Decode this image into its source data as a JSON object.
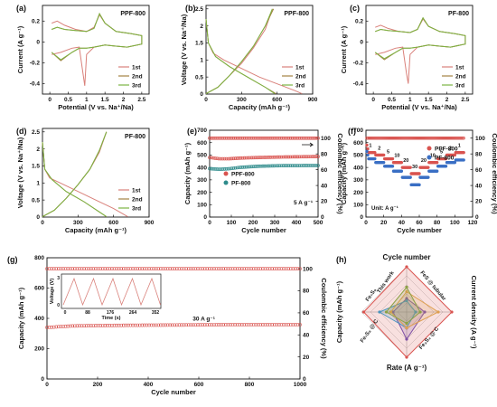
{
  "colors": {
    "c1st": "#d9807a",
    "c2nd": "#a38242",
    "c3rd": "#7cb342",
    "red": "#d9534f",
    "teal": "#2e8b8b",
    "blue": "#3a6fc4"
  },
  "chart_data": [
    {
      "id": "a",
      "panel": "(a)",
      "type": "line",
      "tag": "PPF-800",
      "xlabel": "Potential (V vs. Na⁺/Na)",
      "ylabel": "Current (A g⁻¹)",
      "xlim": [
        -0.2,
        2.7
      ],
      "ylim": [
        -0.5,
        0.35
      ],
      "xticks": [
        0.0,
        0.5,
        1.0,
        1.5,
        2.0,
        2.5
      ],
      "yticks": [
        -0.4,
        -0.2,
        0.0,
        0.2
      ],
      "legend": [
        "1st",
        "2nd",
        "3rd"
      ],
      "series": [
        {
          "name": "1st",
          "x": [
            0.05,
            0.3,
            0.6,
            0.8,
            0.9,
            0.95,
            1.0,
            1.2,
            1.5,
            1.8,
            2.1,
            2.5,
            2.5,
            2.2,
            1.8,
            1.5,
            1.35,
            1.2,
            1.0,
            0.7,
            0.4,
            0.2,
            0.05
          ],
          "y": [
            -0.12,
            -0.1,
            -0.06,
            -0.05,
            -0.3,
            -0.42,
            -0.12,
            -0.05,
            -0.03,
            -0.04,
            -0.05,
            -0.02,
            0.06,
            0.08,
            0.1,
            0.18,
            0.26,
            0.14,
            0.1,
            0.12,
            0.16,
            0.2,
            0.18
          ]
        },
        {
          "name": "2nd",
          "x": [
            0.05,
            0.3,
            0.6,
            0.8,
            1.0,
            1.2,
            1.5,
            1.8,
            2.1,
            2.5,
            2.5,
            2.2,
            1.8,
            1.5,
            1.35,
            1.2,
            1.0,
            0.7,
            0.4,
            0.2,
            0.05
          ],
          "y": [
            -0.1,
            -0.18,
            -0.1,
            -0.06,
            -0.06,
            -0.05,
            -0.03,
            -0.04,
            -0.05,
            -0.02,
            0.06,
            0.08,
            0.1,
            0.18,
            0.27,
            0.13,
            0.1,
            0.11,
            0.12,
            0.14,
            0.12
          ]
        },
        {
          "name": "3rd",
          "x": [
            0.05,
            0.3,
            0.6,
            0.8,
            1.0,
            1.2,
            1.5,
            1.8,
            2.1,
            2.5,
            2.5,
            2.2,
            1.8,
            1.5,
            1.35,
            1.2,
            1.0,
            0.7,
            0.4,
            0.2,
            0.05
          ],
          "y": [
            -0.1,
            -0.17,
            -0.1,
            -0.06,
            -0.06,
            -0.05,
            -0.03,
            -0.04,
            -0.05,
            -0.02,
            0.06,
            0.08,
            0.1,
            0.18,
            0.27,
            0.13,
            0.1,
            0.11,
            0.12,
            0.14,
            0.12
          ]
        }
      ]
    },
    {
      "id": "b",
      "panel": "(b)",
      "type": "line",
      "tag": "PPF-800",
      "xlabel": "Capacity (mAh g⁻¹)",
      "ylabel": "Voltage (V vs. Na⁺/Na)",
      "xlim": [
        0,
        900
      ],
      "ylim": [
        0,
        2.6
      ],
      "xticks": [
        0,
        300,
        600,
        900
      ],
      "yticks": [
        0.0,
        0.5,
        1.0,
        1.5,
        2.0,
        2.5
      ],
      "legend": [
        "1st",
        "2nd",
        "3rd"
      ],
      "series": [
        {
          "name": "1st",
          "x": [
            0,
            20,
            60,
            150,
            300,
            450,
            600,
            750,
            810
          ],
          "y": [
            2.2,
            1.5,
            1.2,
            1.0,
            0.75,
            0.5,
            0.3,
            0.1,
            0.01
          ]
        },
        {
          "name": "1st",
          "x": [
            0,
            100,
            200,
            300,
            400,
            500,
            560
          ],
          "y": [
            0.01,
            0.2,
            0.55,
            0.9,
            1.35,
            1.9,
            2.5
          ]
        },
        {
          "name": "2nd",
          "x": [
            0,
            20,
            80,
            200,
            350,
            500,
            590
          ],
          "y": [
            2.2,
            1.5,
            1.1,
            0.8,
            0.5,
            0.2,
            0.01
          ]
        },
        {
          "name": "2nd",
          "x": [
            0,
            100,
            200,
            300,
            400,
            500,
            570
          ],
          "y": [
            0.01,
            0.2,
            0.55,
            0.95,
            1.4,
            2.0,
            2.5
          ]
        },
        {
          "name": "3rd",
          "x": [
            0,
            20,
            80,
            200,
            350,
            500,
            580
          ],
          "y": [
            2.2,
            1.5,
            1.1,
            0.8,
            0.5,
            0.2,
            0.01
          ]
        },
        {
          "name": "3rd",
          "x": [
            0,
            100,
            200,
            300,
            400,
            500,
            560
          ],
          "y": [
            0.01,
            0.2,
            0.55,
            0.95,
            1.4,
            2.0,
            2.5
          ]
        }
      ]
    },
    {
      "id": "c",
      "panel": "(c)",
      "type": "line",
      "tag": "PF-800",
      "xlabel": "Potential (V vs. Na⁺/Na)",
      "ylabel": "Current (A g⁻¹)",
      "xlim": [
        -0.2,
        2.7
      ],
      "ylim": [
        -0.5,
        0.35
      ],
      "xticks": [
        0.0,
        0.5,
        1.0,
        1.5,
        2.0,
        2.5
      ],
      "yticks": [
        -0.4,
        -0.2,
        0.0,
        0.2
      ],
      "legend": [
        "1st",
        "2nd",
        "3rd"
      ],
      "series": [
        {
          "name": "1st",
          "x": [
            0.05,
            0.3,
            0.6,
            0.8,
            0.9,
            0.95,
            1.0,
            1.2,
            1.5,
            1.8,
            2.1,
            2.5,
            2.5,
            2.2,
            1.8,
            1.5,
            1.35,
            1.2,
            1.0,
            0.7,
            0.4,
            0.2,
            0.05
          ],
          "y": [
            -0.12,
            -0.1,
            -0.06,
            -0.05,
            -0.3,
            -0.4,
            -0.12,
            -0.05,
            -0.03,
            -0.04,
            -0.05,
            -0.02,
            0.06,
            0.08,
            0.1,
            0.15,
            0.22,
            0.12,
            0.09,
            0.1,
            0.13,
            0.16,
            0.14
          ]
        },
        {
          "name": "2nd",
          "x": [
            0.05,
            0.3,
            0.6,
            0.8,
            1.0,
            1.2,
            1.5,
            1.8,
            2.1,
            2.5,
            2.5,
            2.2,
            1.8,
            1.5,
            1.35,
            1.2,
            1.0,
            0.7,
            0.4,
            0.2,
            0.05
          ],
          "y": [
            -0.1,
            -0.17,
            -0.1,
            -0.06,
            -0.06,
            -0.05,
            -0.03,
            -0.04,
            -0.05,
            -0.02,
            0.06,
            0.08,
            0.1,
            0.15,
            0.23,
            0.12,
            0.09,
            0.1,
            0.11,
            0.12,
            0.1
          ]
        },
        {
          "name": "3rd",
          "x": [
            0.05,
            0.3,
            0.6,
            0.8,
            1.0,
            1.2,
            1.5,
            1.8,
            2.1,
            2.5,
            2.5,
            2.2,
            1.8,
            1.5,
            1.35,
            1.2,
            1.0,
            0.7,
            0.4,
            0.2,
            0.05
          ],
          "y": [
            -0.1,
            -0.16,
            -0.1,
            -0.06,
            -0.06,
            -0.05,
            -0.03,
            -0.04,
            -0.05,
            -0.02,
            0.06,
            0.08,
            0.1,
            0.15,
            0.23,
            0.12,
            0.09,
            0.1,
            0.11,
            0.12,
            0.1
          ]
        }
      ]
    },
    {
      "id": "d",
      "panel": "(d)",
      "type": "line",
      "tag": "PF-800",
      "xlabel": "Capacity (mAh g⁻¹)",
      "ylabel": "Voltage (V vs. Na⁺/Na)",
      "xlim": [
        0,
        900
      ],
      "ylim": [
        0,
        2.6
      ],
      "xticks": [
        0,
        300,
        600,
        900
      ],
      "yticks": [
        0.0,
        0.5,
        1.0,
        1.5,
        2.0,
        2.5
      ],
      "legend": [
        "1st",
        "2nd",
        "3rd"
      ],
      "series": [
        {
          "name": "1st",
          "x": [
            0,
            20,
            60,
            150,
            300,
            450,
            600,
            720
          ],
          "y": [
            2.2,
            1.4,
            1.15,
            1.0,
            0.75,
            0.5,
            0.25,
            0.01
          ]
        },
        {
          "name": "1st",
          "x": [
            0,
            100,
            200,
            300,
            400,
            480,
            540
          ],
          "y": [
            0.01,
            0.2,
            0.55,
            0.95,
            1.4,
            1.9,
            2.5
          ]
        },
        {
          "name": "2nd",
          "x": [
            0,
            20,
            80,
            200,
            350,
            480,
            540
          ],
          "y": [
            2.2,
            1.4,
            1.1,
            0.75,
            0.45,
            0.15,
            0.01
          ]
        },
        {
          "name": "2nd",
          "x": [
            0,
            100,
            200,
            300,
            400,
            480,
            540
          ],
          "y": [
            0.01,
            0.2,
            0.55,
            0.95,
            1.4,
            1.95,
            2.5
          ]
        },
        {
          "name": "3rd",
          "x": [
            0,
            20,
            80,
            200,
            350,
            480,
            540
          ],
          "y": [
            2.2,
            1.4,
            1.1,
            0.75,
            0.45,
            0.15,
            0.01
          ]
        },
        {
          "name": "3rd",
          "x": [
            0,
            100,
            200,
            300,
            400,
            480,
            540
          ],
          "y": [
            0.01,
            0.2,
            0.55,
            0.95,
            1.4,
            1.95,
            2.5
          ]
        }
      ]
    },
    {
      "id": "e",
      "panel": "(e)",
      "type": "scatter",
      "xlabel": "Cycle number",
      "ylabel": "Capacity (mAh g⁻¹)",
      "y2label": "Coulombic efficiency (%)",
      "xlim": [
        0,
        500
      ],
      "ylim": [
        0,
        700
      ],
      "y2lim": [
        0,
        110
      ],
      "xticks": [
        0,
        100,
        200,
        300,
        400,
        500
      ],
      "yticks": [
        0,
        100,
        200,
        300,
        400,
        500,
        600,
        700
      ],
      "y2ticks": [
        0,
        20,
        40,
        60,
        80,
        100
      ],
      "annotation": "5 A g⁻¹",
      "legend": [
        "PPF-800",
        "PF-800"
      ],
      "series": [
        {
          "name": "PPF-800",
          "kind": "capacity",
          "x0": 0,
          "x1": 500,
          "n": 60,
          "y": [
            480,
            470,
            470,
            475,
            478,
            480,
            482,
            484,
            485,
            486,
            487,
            488
          ]
        },
        {
          "name": "PF-800",
          "kind": "capacity",
          "x0": 0,
          "x1": 500,
          "n": 60,
          "y": [
            390,
            385,
            390,
            400,
            405,
            410,
            412,
            414,
            415,
            415,
            416,
            416
          ]
        },
        {
          "name": "PPF-800 CE",
          "kind": "ce",
          "x0": 0,
          "x1": 500,
          "n": 60,
          "y": [
            100,
            100,
            100,
            100,
            100,
            100,
            100,
            100,
            100,
            100,
            100,
            100
          ]
        }
      ]
    },
    {
      "id": "f",
      "panel": "(f)",
      "type": "scatter",
      "xlabel": "Cycle number",
      "ylabel": "Capacity (mAh g⁻¹)",
      "y2label": "Coulombic efficiency (%)",
      "xlim": [
        0,
        120
      ],
      "ylim": [
        0,
        700
      ],
      "y2lim": [
        0,
        110
      ],
      "xticks": [
        0,
        20,
        40,
        60,
        80,
        100,
        120
      ],
      "yticks": [
        0,
        100,
        200,
        300,
        400,
        500,
        600,
        700
      ],
      "y2ticks": [
        0,
        20,
        40,
        60,
        80,
        100
      ],
      "unit_note": "Unit: A g⁻¹",
      "rate_labels": [
        "1",
        "2",
        "5",
        "10",
        "20",
        "30",
        "20",
        "10",
        "5",
        "2",
        "1"
      ],
      "legend": [
        "PPF-800",
        "PF-800"
      ],
      "series": [
        {
          "name": "PPF-800",
          "steps": [
            520,
            500,
            470,
            440,
            400,
            350,
            400,
            440,
            470,
            500,
            520
          ]
        },
        {
          "name": "PF-800",
          "steps": [
            470,
            440,
            410,
            370,
            320,
            260,
            320,
            370,
            410,
            440,
            460
          ]
        },
        {
          "name": "CE",
          "steps": [
            100,
            100,
            100,
            100,
            100,
            100,
            100,
            100,
            100,
            100,
            100
          ]
        }
      ]
    },
    {
      "id": "g",
      "panel": "(g)",
      "type": "scatter",
      "xlabel": "Cycle number",
      "ylabel": "Capacity (mAh g⁻¹)",
      "y2label": "Coulombic efficiency (%)",
      "xlim": [
        0,
        1000
      ],
      "ylim": [
        0,
        800
      ],
      "y2lim": [
        0,
        110
      ],
      "xticks": [
        0,
        200,
        400,
        600,
        800,
        1000
      ],
      "yticks": [
        0,
        200,
        400,
        600,
        800
      ],
      "y2ticks": [
        0,
        20,
        40,
        60,
        80,
        100
      ],
      "annotation": "30 A g⁻¹",
      "capacity": [
        340,
        350,
        352,
        354,
        355,
        356,
        357,
        358,
        358,
        358,
        358
      ],
      "ce": [
        100,
        100,
        100,
        100,
        100,
        100,
        100,
        100,
        100,
        100,
        100
      ],
      "inset": {
        "xlabel": "Time (s)",
        "ylabel": "Voltage (V)",
        "xticks": [
          "0",
          "88",
          "176",
          "264",
          "352"
        ],
        "yticks": [
          "0",
          "3"
        ]
      }
    },
    {
      "id": "h",
      "panel": "(h)",
      "type": "radar",
      "axes": [
        "Cycle number",
        "Current density (A g⁻¹)",
        "Rate (A g⁻¹)",
        "Capacity (mAh g⁻¹)"
      ],
      "series": [
        {
          "name": "This work",
          "color": "#d9534f",
          "values": [
            1.0,
            1.0,
            1.0,
            0.95
          ]
        },
        {
          "name": "Fe₇S₈",
          "color": "#7cb342",
          "values": [
            0.55,
            0.3,
            0.25,
            0.45
          ]
        },
        {
          "name": "FeS @ tubular",
          "color": "#e0b050",
          "values": [
            0.45,
            0.7,
            0.35,
            0.35
          ]
        },
        {
          "name": "Fe₇S₈ @ C",
          "color": "#29a3d6",
          "values": [
            0.25,
            0.2,
            0.35,
            0.6
          ]
        },
        {
          "name": "Fe₃S₄ @ C",
          "color": "#6a4fb8",
          "values": [
            0.3,
            0.4,
            0.6,
            0.3
          ]
        }
      ]
    }
  ]
}
